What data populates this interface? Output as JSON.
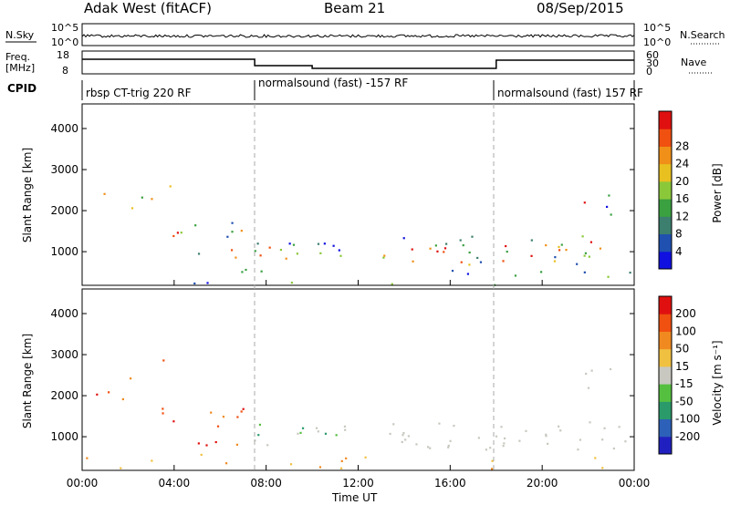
{
  "header": {
    "station": "Adak West (fitACF)",
    "beam": "Beam 21",
    "date": "08/Sep/2015"
  },
  "top_panels": {
    "nsky_label": "N.Sky",
    "nsearch_label": "N.Search",
    "freq_label_1": "Freq.",
    "freq_label_2": "[MHz]",
    "nave_label": "Nave",
    "cpid_label": "CPID",
    "nsky_ticks": [
      "10^5",
      "10^0"
    ],
    "nsearch_ticks": [
      "10^5",
      "10^0"
    ],
    "freq_ticks": [
      "18",
      "8"
    ],
    "nave_ticks": [
      "60",
      "30",
      "0"
    ]
  },
  "cpid": [
    {
      "label": "rbsp CT-trig 220 RF",
      "start": 0.0
    },
    {
      "label": "normalsound (fast) -157 RF",
      "start": 7.5
    },
    {
      "label": "normalsound (fast) 157 RF",
      "start": 18.0
    }
  ],
  "chart_data": [
    {
      "type": "heatmap",
      "name": "power",
      "ylabel": "Slant Range [km]",
      "xlabel": "Time UT",
      "x_ticks": [
        "00:00",
        "04:00",
        "08:00",
        "12:00",
        "16:00",
        "20:00",
        "00:00"
      ],
      "x_range_hours": [
        0,
        24
      ],
      "y_ticks": [
        1000,
        2000,
        3000,
        4000
      ],
      "ylim": [
        180,
        4600
      ],
      "colorbar": {
        "label": "Power [dB]",
        "ticks": [
          "4",
          "8",
          "12",
          "16",
          "20",
          "24",
          "28"
        ],
        "colors": [
          "#1010e0",
          "#2050b0",
          "#3c7f6e",
          "#3aa040",
          "#8ac83a",
          "#e8c020",
          "#f09018",
          "#f05010",
          "#e01010"
        ]
      }
    },
    {
      "type": "heatmap",
      "name": "velocity",
      "ylabel": "Slant Range [km]",
      "xlabel": "Time UT",
      "x_ticks": [
        "00:00",
        "04:00",
        "08:00",
        "12:00",
        "16:00",
        "20:00",
        "00:00"
      ],
      "x_range_hours": [
        0,
        24
      ],
      "y_ticks": [
        1000,
        2000,
        3000,
        4000
      ],
      "ylim": [
        180,
        4600
      ],
      "colorbar": {
        "label": "Velocity [m s⁻¹]",
        "ticks": [
          "200",
          "100",
          "50",
          "15",
          "-15",
          "-50",
          "-100",
          "-200"
        ],
        "colors": [
          "#2020c0",
          "#2d60b8",
          "#2a9a6a",
          "#55c040",
          "#c8c8c0",
          "#f0c040",
          "#f08a20",
          "#f05010",
          "#e01010"
        ]
      }
    }
  ],
  "footer": {
    "xlabel": "Time UT"
  }
}
